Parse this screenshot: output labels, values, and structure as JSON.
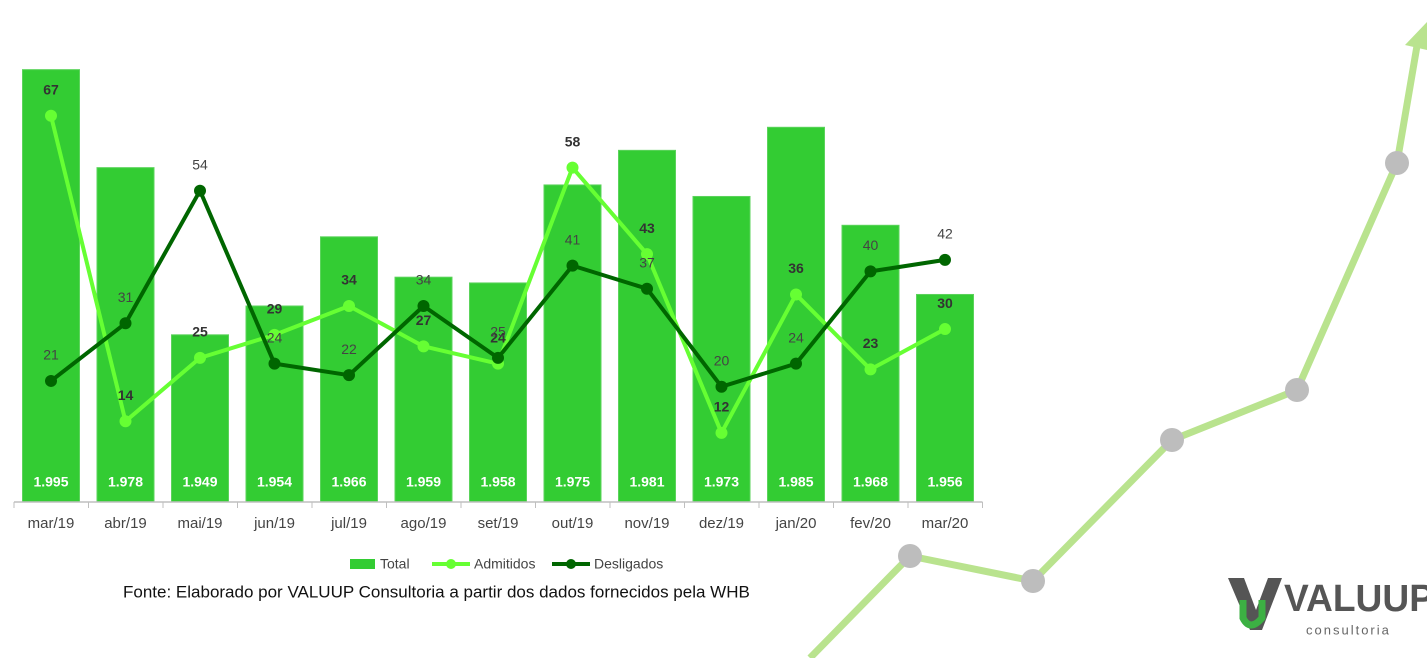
{
  "chart_data": {
    "type": "bar",
    "categories": [
      "mar/19",
      "abr/19",
      "mai/19",
      "jun/19",
      "jul/19",
      "ago/19",
      "set/19",
      "out/19",
      "nov/19",
      "dez/19",
      "jan/20",
      "fev/20",
      "mar/20"
    ],
    "ylim": [
      1920,
      2005
    ],
    "y2lim": [
      0,
      85
    ],
    "series": [
      {
        "name": "Total",
        "type": "bar",
        "color": "#33cc33",
        "values": [
          1995,
          1978,
          1949,
          1954,
          1966,
          1959,
          1958,
          1975,
          1981,
          1973,
          1985,
          1968,
          1956
        ],
        "value_labels": [
          "1.995",
          "1.978",
          "1.949",
          "1.954",
          "1.966",
          "1.959",
          "1.958",
          "1.975",
          "1.981",
          "1.973",
          "1.985",
          "1.968",
          "1.956"
        ]
      },
      {
        "name": "Admitidos",
        "type": "line",
        "axis": "y2",
        "color": "#66ff33",
        "values": [
          67,
          14,
          25,
          29,
          34,
          27,
          24,
          58,
          43,
          12,
          36,
          23,
          30
        ]
      },
      {
        "name": "Desligados",
        "type": "line",
        "axis": "y2",
        "color": "#006600",
        "values": [
          21,
          31,
          54,
          24,
          22,
          34,
          25,
          41,
          37,
          20,
          24,
          40,
          42
        ]
      }
    ],
    "legend": "bottom",
    "source": "Fonte:  Elaborado por VALUUP Consultoria a partir dos dados fornecidos pela WHB"
  },
  "logo": {
    "name": "VALUUP",
    "tagline": "consultoria"
  }
}
